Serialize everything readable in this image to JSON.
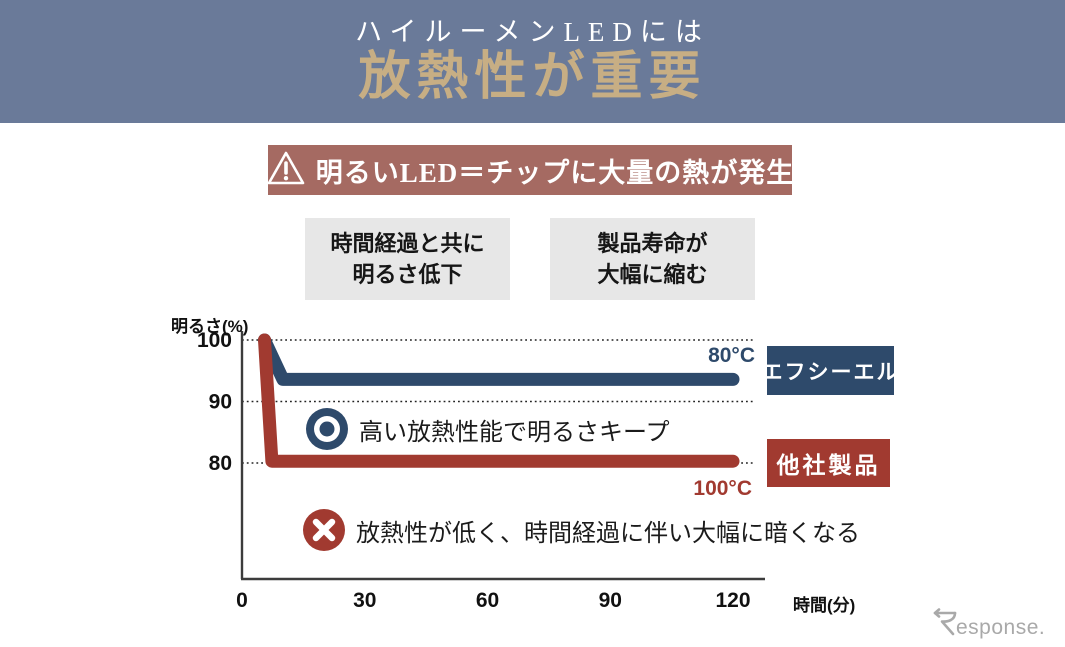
{
  "header": {
    "subtitle": "ハイルーメンLEDには",
    "title": "放熱性が重要"
  },
  "warning": {
    "text": "明るいLED＝チップに大量の熱が発生"
  },
  "effects": [
    {
      "line1": "時間経過と共に",
      "line2": "明るさ低下"
    },
    {
      "line1": "製品寿命が",
      "line2": "大幅に縮む"
    }
  ],
  "chart_data": {
    "type": "line",
    "xlabel": "時間(分)",
    "ylabel": "明るさ(%)",
    "xticks": [
      0,
      30,
      60,
      90,
      120
    ],
    "yticks": [
      100,
      90,
      80
    ],
    "xlim": [
      0,
      120
    ],
    "ylim": [
      61,
      100
    ],
    "grid": "dotted horizontal",
    "series": [
      {
        "name": "エフシーエル",
        "temp_label": "80°C",
        "color": "#2E4A6B",
        "points": [
          [
            5.5,
            100
          ],
          [
            10,
            93.6
          ],
          [
            120,
            93.6
          ]
        ]
      },
      {
        "name": "他社製品",
        "temp_label": "100°C",
        "color": "#A13A30",
        "points": [
          [
            5.5,
            100
          ],
          [
            7.3,
            80.3
          ],
          [
            120,
            80.3
          ]
        ]
      }
    ],
    "annotations": [
      {
        "icon": "target-icon",
        "text": "高い放熱性能で明るさキープ"
      },
      {
        "icon": "cross-icon",
        "text": "放熱性が低く、時間経過に伴い大幅に暗くなる"
      }
    ]
  },
  "watermark": {
    "text": "Response."
  }
}
